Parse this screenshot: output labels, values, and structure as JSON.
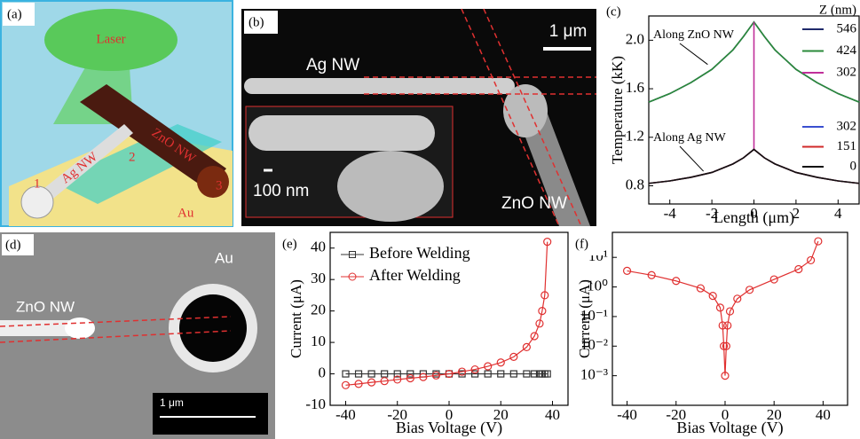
{
  "panels": {
    "a": {
      "label": "(a)",
      "laser": "Laser",
      "ag": "Ag NW",
      "zno": "ZnO NW",
      "p1": "1",
      "p2": "2",
      "p3": "3",
      "au": "Au"
    },
    "b": {
      "label": "(b)",
      "scale": "1 μm",
      "ag": "Ag NW",
      "inset_scale": "100 nm",
      "zno": "ZnO NW"
    },
    "d": {
      "label": "(d)",
      "zno": "ZnO NW",
      "au": "Au",
      "scale": "1 μm"
    }
  },
  "chart_data": [
    {
      "type": "line",
      "panel_label": "(c)",
      "xlabel": "Length (μm)",
      "ylabel": "Temperature (kK)",
      "x": [
        -5,
        -4,
        -3,
        -2,
        -1,
        -0.5,
        0,
        0.5,
        1,
        2,
        3,
        4,
        5
      ],
      "xlim": [
        -5,
        5
      ],
      "xticks": [
        -4,
        -2,
        0,
        2,
        4
      ],
      "ylim": [
        0.65,
        2.2
      ],
      "yticks": [
        0.8,
        1.2,
        1.6,
        {
          "value": 2,
          "label": "2.0"
        }
      ],
      "legend_title": "Z (nm)",
      "legend": "upper right",
      "annotations": [
        "Along ZnO NW",
        "Along Ag NW"
      ],
      "series": [
        {
          "name": "546",
          "color": "#1f2a6b",
          "values": [
            1.49,
            1.56,
            1.65,
            1.76,
            1.92,
            2.03,
            2.15,
            2.03,
            1.92,
            1.76,
            1.65,
            1.56,
            1.49
          ]
        },
        {
          "name": "424",
          "color": "#2a8a3a",
          "values": [
            1.49,
            1.56,
            1.65,
            1.76,
            1.92,
            2.03,
            2.15,
            2.03,
            1.92,
            1.76,
            1.65,
            1.56,
            1.49
          ]
        },
        {
          "name": "302",
          "color": "#c0309a",
          "x": [
            0,
            0
          ],
          "values": [
            1.1,
            2.15
          ]
        },
        {
          "name": "302",
          "color": "#3a4fd0",
          "values": [
            0.82,
            0.84,
            0.87,
            0.91,
            0.98,
            1.03,
            1.1,
            1.03,
            0.98,
            0.91,
            0.87,
            0.84,
            0.82
          ]
        },
        {
          "name": "151",
          "color": "#d02a2a",
          "values": [
            0.82,
            0.84,
            0.87,
            0.91,
            0.98,
            1.03,
            1.1,
            1.03,
            0.98,
            0.91,
            0.87,
            0.84,
            0.82
          ]
        },
        {
          "name": "0",
          "color": "#111111",
          "values": [
            0.82,
            0.84,
            0.87,
            0.91,
            0.98,
            1.03,
            1.1,
            1.03,
            0.98,
            0.91,
            0.87,
            0.84,
            0.82
          ]
        }
      ]
    },
    {
      "type": "line",
      "panel_label": "(e)",
      "xlabel": "Bias Voltage (V)",
      "ylabel": "Current (μA)",
      "x": [
        -40,
        -35,
        -30,
        -25,
        -20,
        -15,
        -10,
        -5,
        0,
        5,
        10,
        15,
        20,
        25,
        30,
        33,
        35,
        36,
        37,
        38
      ],
      "xlim": [
        -46,
        46
      ],
      "xticks": [
        -40,
        -20,
        0,
        20,
        40
      ],
      "ylim": [
        -10,
        45
      ],
      "yticks": [
        -10,
        0,
        10,
        20,
        30,
        40
      ],
      "legend": "upper left",
      "series": [
        {
          "name": "Before Welding",
          "color": "#333333",
          "marker": "square",
          "values": [
            0,
            0,
            0,
            0,
            0,
            0,
            0,
            0,
            0,
            0,
            0,
            0,
            0,
            0,
            0,
            0,
            0,
            0,
            0,
            0
          ]
        },
        {
          "name": "After Welding",
          "color": "#e03030",
          "marker": "circle",
          "values": [
            -3.6,
            -3.2,
            -2.7,
            -2.3,
            -1.8,
            -1.4,
            -1,
            -0.5,
            0,
            0.7,
            1.4,
            2.4,
            3.6,
            5.4,
            8.5,
            12,
            16,
            20,
            25,
            42
          ]
        }
      ]
    },
    {
      "type": "line",
      "panel_label": "(f)",
      "xlabel": "Bias Voltage (V)",
      "ylabel": "Current (μA)",
      "log_y": true,
      "x": [
        -40,
        -30,
        -20,
        -10,
        -5,
        -2,
        -1,
        -0.5,
        0,
        0.5,
        1,
        2,
        5,
        10,
        20,
        30,
        35,
        38
      ],
      "xlim": [
        -46,
        50
      ],
      "xticks": [
        -40,
        -20,
        0,
        20,
        40
      ],
      "ylim": [
        0.0001,
        70
      ],
      "yticks": [
        {
          "value": 0.001,
          "label": "10⁻³"
        },
        {
          "value": 0.01,
          "label": "10⁻²"
        },
        {
          "value": 0.1,
          "label": "10⁻¹"
        },
        {
          "value": 1,
          "label": "10⁰"
        },
        {
          "value": 10,
          "label": "10¹"
        }
      ],
      "series": [
        {
          "color": "#e03030",
          "marker": "circle",
          "values": [
            3.5,
            2.5,
            1.6,
            0.9,
            0.5,
            0.2,
            0.05,
            0.01,
            0.001,
            0.01,
            0.05,
            0.15,
            0.4,
            0.8,
            1.8,
            4,
            8,
            35
          ]
        }
      ]
    }
  ]
}
